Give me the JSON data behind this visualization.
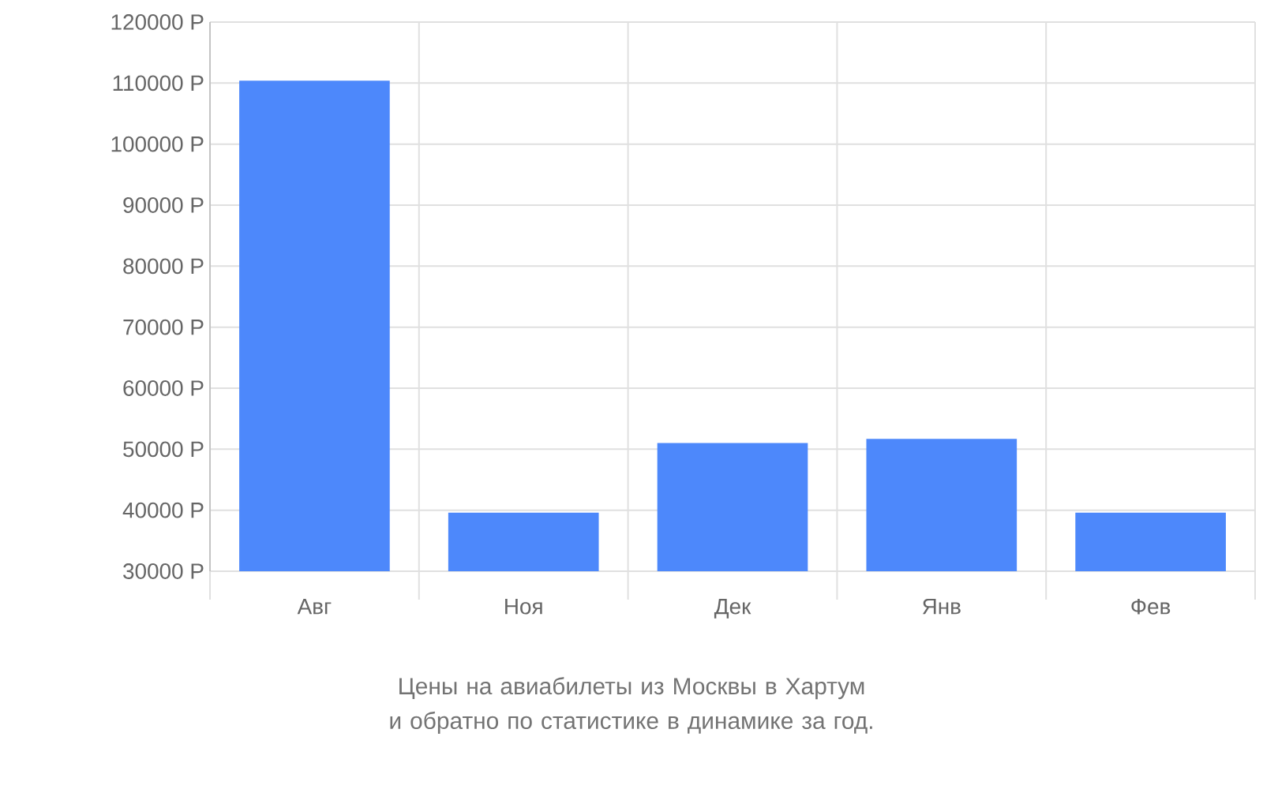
{
  "chart_data": {
    "type": "bar",
    "title": "Цены на авиабилеты из Москвы в Хартум и обратно по статистике в динамике за год.",
    "categories": [
      "Авг",
      "Ноя",
      "Дек",
      "Янв",
      "Фев"
    ],
    "values": [
      110400,
      39600,
      51000,
      51700,
      39600
    ],
    "color": "#4d88fb",
    "ylim": [
      30000,
      120000
    ],
    "yticks": [
      {
        "value": 30000,
        "label": "30000 Р"
      },
      {
        "value": 40000,
        "label": "40000 Р"
      },
      {
        "value": 50000,
        "label": "50000 Р"
      },
      {
        "value": 60000,
        "label": "60000 Р"
      },
      {
        "value": 70000,
        "label": "70000 Р"
      },
      {
        "value": 80000,
        "label": "80000 Р"
      },
      {
        "value": 90000,
        "label": "90000 Р"
      },
      {
        "value": 100000,
        "label": "100000 Р"
      },
      {
        "value": 110000,
        "label": "110000 Р"
      },
      {
        "value": 120000,
        "label": "120000 Р"
      }
    ],
    "grid": true
  }
}
